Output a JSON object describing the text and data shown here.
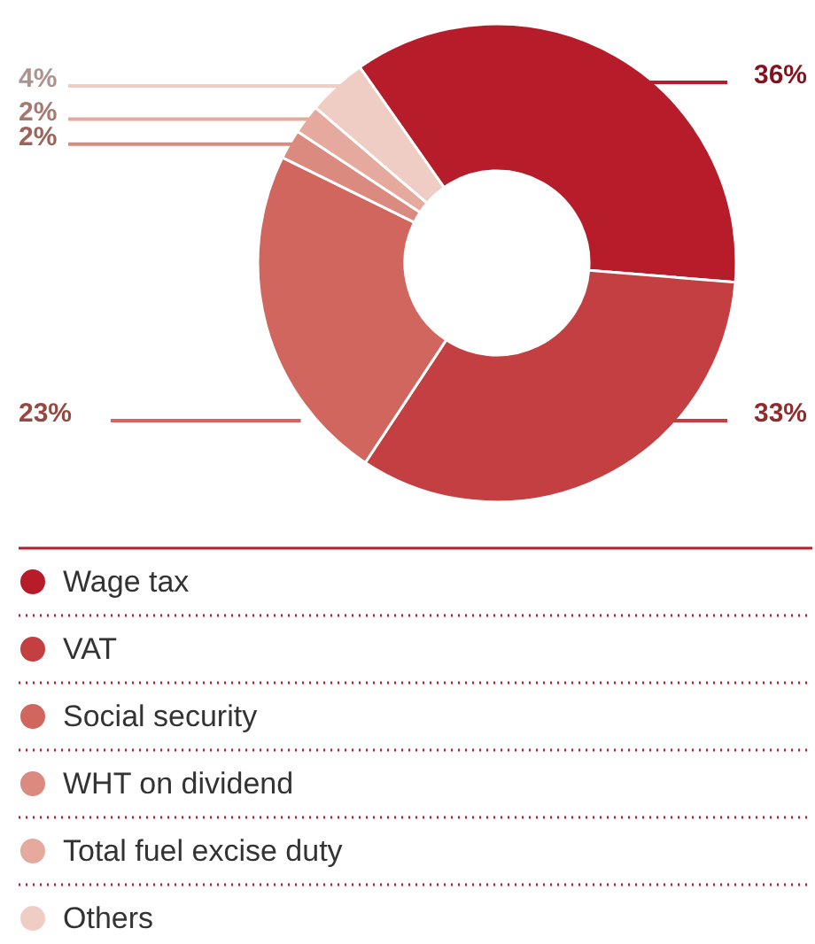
{
  "chart_data": {
    "type": "donut",
    "categories": [
      "Wage tax",
      "VAT",
      "Social security",
      "WHT on dividend",
      "Total fuel excise duty",
      "Others"
    ],
    "values": [
      36,
      33,
      23,
      2,
      2,
      4
    ],
    "colors": [
      "#b71c2b",
      "#c43f41",
      "#d0665d",
      "#da8a7e",
      "#e5a99d",
      "#f0cdc4"
    ],
    "value_labels": [
      "36%",
      "33%",
      "23%",
      "2%",
      "2%",
      "4%"
    ],
    "legend": "bottom"
  }
}
